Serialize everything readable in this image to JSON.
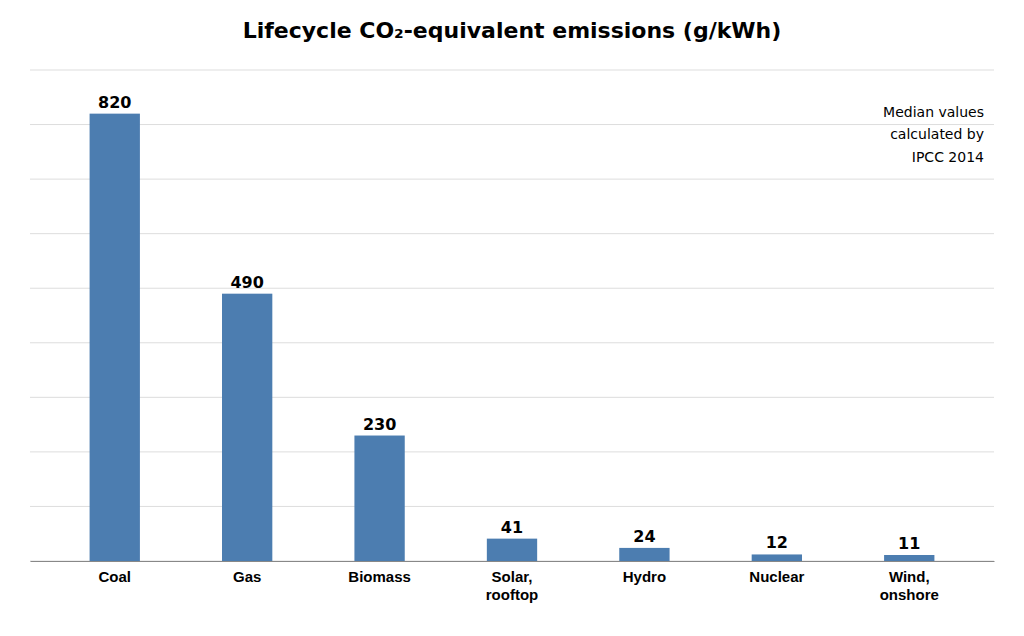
{
  "chart_data": {
    "type": "bar",
    "title": "Lifecycle CO₂-equivalent emissions (g/kWh)",
    "annotation": "Median values\ncalculated by\nIPCC 2014",
    "categories": [
      "Coal",
      "Gas",
      "Biomass",
      "Solar,\nrooftop",
      "Hydro",
      "Nuclear",
      "Wind,\nonshore"
    ],
    "values": [
      820,
      490,
      230,
      41,
      24,
      12,
      11
    ],
    "color": "#4C7DB0",
    "ylim": [
      0,
      900
    ],
    "yticks": [
      0,
      100,
      200,
      300,
      400,
      500,
      600,
      700,
      800,
      900
    ],
    "grid": true,
    "data_labels": true,
    "tick_labels": "x"
  }
}
